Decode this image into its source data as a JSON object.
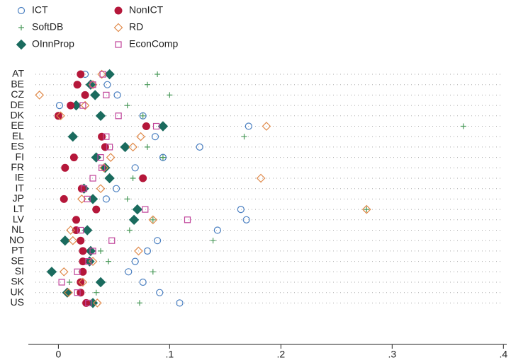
{
  "chart_data": {
    "type": "dot",
    "categories": [
      "AT",
      "BE",
      "CZ",
      "DE",
      "DK",
      "EE",
      "EL",
      "ES",
      "FI",
      "FR",
      "IE",
      "IT",
      "JP",
      "LT",
      "LV",
      "NL",
      "NO",
      "PT",
      "SE",
      "SI",
      "SK",
      "UK",
      "US"
    ],
    "series": [
      {
        "name": "ICT",
        "color": "#4a7fc1",
        "marker": "circle-open",
        "values": [
          0.024,
          0.044,
          0.053,
          0.001,
          0.076,
          0.171,
          0.087,
          0.127,
          0.094,
          0.069,
          0.076,
          0.052,
          0.043,
          0.164,
          0.169,
          0.143,
          0.089,
          0.08,
          0.069,
          0.063,
          0.076,
          0.091,
          0.109
        ]
      },
      {
        "name": "SoftDB",
        "color": "#4a9a5a",
        "marker": "plus",
        "values": [
          0.089,
          0.08,
          0.1,
          0.062,
          0.076,
          0.364,
          0.167,
          0.08,
          0.094,
          0.043,
          0.067,
          0.024,
          0.062,
          0.277,
          0.085,
          0.064,
          0.139,
          0.038,
          0.045,
          0.085,
          0.01,
          0.034,
          0.073
        ]
      },
      {
        "name": "OInnProp",
        "color": "#1a6b5e",
        "marker": "diamond",
        "values": [
          0.046,
          0.029,
          0.033,
          0.016,
          0.038,
          0.094,
          0.013,
          0.06,
          0.034,
          0.042,
          0.046,
          0.023,
          0.031,
          0.071,
          0.068,
          0.026,
          0.006,
          0.029,
          0.028,
          -0.006,
          0.038,
          0.008,
          0.031
        ]
      },
      {
        "name": "NonICT",
        "color": "#b5173a",
        "marker": "circle",
        "values": [
          0.02,
          0.017,
          0.024,
          0.011,
          0.0,
          0.079,
          0.039,
          0.042,
          0.014,
          0.006,
          0.076,
          0.021,
          0.005,
          0.034,
          0.016,
          0.016,
          0.02,
          0.022,
          0.022,
          0.022,
          0.02,
          0.02,
          0.025
        ]
      },
      {
        "name": "RD",
        "color": "#e08a4a",
        "marker": "diamond-open",
        "values": [
          0.039,
          0.031,
          -0.017,
          0.024,
          0.002,
          0.187,
          0.074,
          0.067,
          0.047,
          0.041,
          0.182,
          0.038,
          0.021,
          0.277,
          0.085,
          0.011,
          0.013,
          0.072,
          0.031,
          0.005,
          0.022,
          0.009,
          0.035
        ]
      },
      {
        "name": "EconComp",
        "color": "#c0449a",
        "marker": "square-open",
        "values": [
          0.04,
          0.031,
          0.043,
          0.022,
          0.054,
          0.088,
          0.043,
          0.046,
          0.038,
          0.039,
          0.031,
          0.023,
          0.026,
          0.078,
          0.116,
          0.02,
          0.048,
          0.031,
          0.027,
          0.017,
          0.003,
          0.017,
          0.027
        ]
      }
    ],
    "xlim": [
      -0.027,
      0.403
    ],
    "xticks": [
      0,
      {
        "value": 0.1,
        "label": ".1"
      },
      {
        "value": 0.2,
        "label": ".2"
      },
      {
        "value": 0.3,
        "label": ".3"
      },
      {
        "value": 0.4,
        "label": ".4"
      }
    ]
  }
}
